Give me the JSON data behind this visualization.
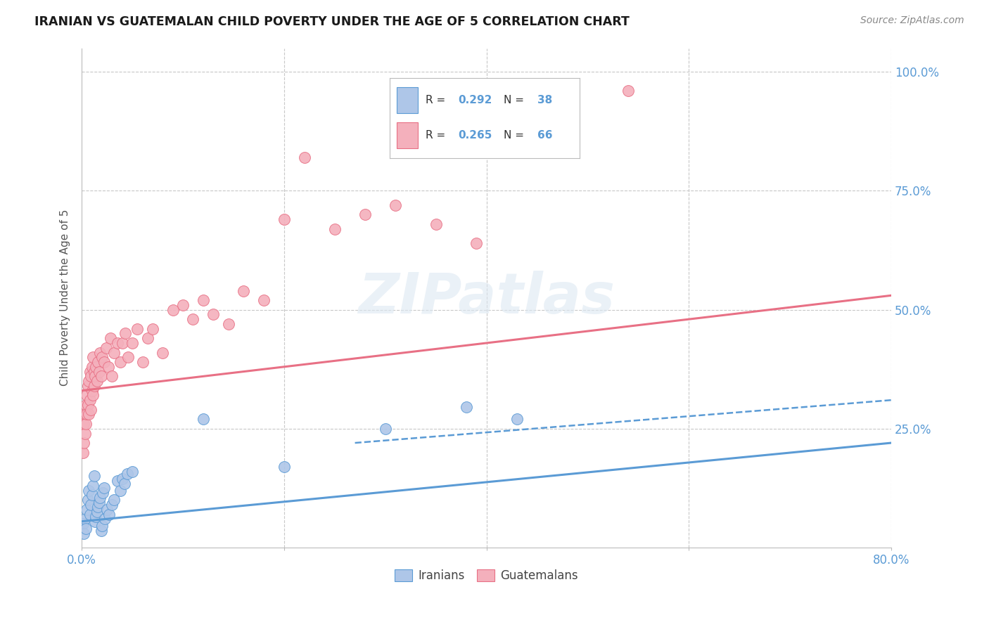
{
  "title": "IRANIAN VS GUATEMALAN CHILD POVERTY UNDER THE AGE OF 5 CORRELATION CHART",
  "source": "Source: ZipAtlas.com",
  "ylabel": "Child Poverty Under the Age of 5",
  "xmin": 0.0,
  "xmax": 0.8,
  "ymin": 0.0,
  "ymax": 1.05,
  "iranian_scatter_x": [
    0.001,
    0.002,
    0.003,
    0.004,
    0.005,
    0.006,
    0.007,
    0.008,
    0.009,
    0.01,
    0.011,
    0.012,
    0.013,
    0.014,
    0.015,
    0.016,
    0.017,
    0.018,
    0.019,
    0.02,
    0.021,
    0.022,
    0.023,
    0.025,
    0.027,
    0.03,
    0.032,
    0.035,
    0.038,
    0.04,
    0.042,
    0.045,
    0.05,
    0.12,
    0.2,
    0.3,
    0.38,
    0.43
  ],
  "iranian_scatter_y": [
    0.05,
    0.03,
    0.06,
    0.04,
    0.08,
    0.1,
    0.12,
    0.07,
    0.09,
    0.11,
    0.13,
    0.15,
    0.055,
    0.065,
    0.075,
    0.085,
    0.095,
    0.105,
    0.035,
    0.045,
    0.115,
    0.125,
    0.06,
    0.08,
    0.07,
    0.09,
    0.1,
    0.14,
    0.12,
    0.145,
    0.135,
    0.155,
    0.16,
    0.27,
    0.17,
    0.25,
    0.295,
    0.27
  ],
  "guatemalan_scatter_x": [
    0.001,
    0.002,
    0.002,
    0.003,
    0.003,
    0.004,
    0.004,
    0.005,
    0.005,
    0.006,
    0.006,
    0.007,
    0.007,
    0.008,
    0.008,
    0.009,
    0.009,
    0.01,
    0.01,
    0.011,
    0.011,
    0.012,
    0.012,
    0.013,
    0.014,
    0.015,
    0.016,
    0.017,
    0.018,
    0.019,
    0.02,
    0.022,
    0.024,
    0.026,
    0.028,
    0.03,
    0.032,
    0.035,
    0.038,
    0.04,
    0.043,
    0.046,
    0.05,
    0.055,
    0.06,
    0.065,
    0.07,
    0.08,
    0.09,
    0.1,
    0.11,
    0.12,
    0.13,
    0.145,
    0.16,
    0.18,
    0.2,
    0.22,
    0.25,
    0.28,
    0.31,
    0.35,
    0.39,
    0.43,
    0.48,
    0.54
  ],
  "guatemalan_scatter_y": [
    0.2,
    0.22,
    0.26,
    0.24,
    0.28,
    0.26,
    0.3,
    0.28,
    0.32,
    0.3,
    0.34,
    0.28,
    0.35,
    0.31,
    0.37,
    0.29,
    0.36,
    0.33,
    0.38,
    0.32,
    0.4,
    0.34,
    0.37,
    0.36,
    0.38,
    0.35,
    0.39,
    0.37,
    0.41,
    0.36,
    0.4,
    0.39,
    0.42,
    0.38,
    0.44,
    0.36,
    0.41,
    0.43,
    0.39,
    0.43,
    0.45,
    0.4,
    0.43,
    0.46,
    0.39,
    0.44,
    0.46,
    0.41,
    0.5,
    0.51,
    0.48,
    0.52,
    0.49,
    0.47,
    0.54,
    0.52,
    0.69,
    0.82,
    0.67,
    0.7,
    0.72,
    0.68,
    0.64,
    0.87,
    0.9,
    0.96
  ],
  "iranian_line_x": [
    0.0,
    0.8
  ],
  "iranian_line_y": [
    0.055,
    0.22
  ],
  "guatemalan_line_x": [
    0.0,
    0.8
  ],
  "guatemalan_line_y": [
    0.33,
    0.53
  ],
  "dashed_line_x": [
    0.27,
    0.8
  ],
  "dashed_line_y": [
    0.22,
    0.31
  ],
  "iranian_color": "#5b9bd5",
  "guatemalan_color": "#e87085",
  "iranian_scatter_color": "#aec6e8",
  "guatemalan_scatter_color": "#f4b0bc",
  "bg_color": "#ffffff",
  "grid_color": "#c8c8c8",
  "legend_r1": "0.292",
  "legend_n1": "38",
  "legend_r2": "0.265",
  "legend_n2": "66"
}
